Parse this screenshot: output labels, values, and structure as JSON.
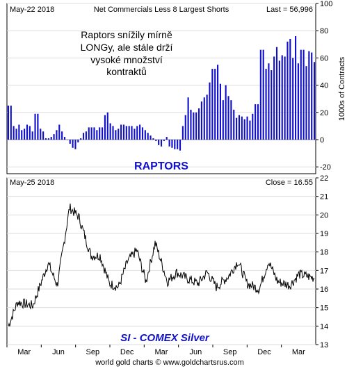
{
  "chart_data": [
    {
      "type": "bar",
      "panel": "top",
      "date_label": "May-22  2018",
      "title": "Net Commercials Less 8 Largest Shorts",
      "last_label": "Last = 56,996",
      "ylabel": "1000s of Contracts",
      "ylim": [
        -25,
        100
      ],
      "yticks": [
        -20,
        0,
        20,
        40,
        60,
        80,
        100
      ],
      "annotation_lines": [
        "Raptors snížily mírně",
        "LONGy, ale stále drží",
        "vysoké množství",
        "kontraktů"
      ],
      "caption": "RAPTORS",
      "colors": {
        "bars": "#1010cc",
        "caption": "#1010cc",
        "annotation": "#000000"
      },
      "values": [
        25,
        25,
        10,
        8,
        11,
        7,
        8,
        11,
        10,
        6,
        19,
        19,
        8,
        6,
        1,
        1,
        2,
        4,
        7,
        11,
        6,
        2,
        0,
        -3,
        -6,
        -7,
        -2,
        1,
        5,
        6,
        9,
        9,
        9,
        7,
        9,
        9,
        18,
        20,
        12,
        10,
        7,
        8,
        11,
        11,
        10,
        10,
        10,
        8,
        10,
        11,
        9,
        7,
        5,
        3,
        1,
        -1,
        -4,
        -5,
        -1,
        2,
        -5,
        -6,
        -7,
        -7,
        -8,
        10,
        18,
        31,
        22,
        20,
        20,
        23,
        28,
        31,
        33,
        42,
        52,
        52,
        55,
        41,
        29,
        40,
        32,
        29,
        22,
        16,
        18,
        17,
        15,
        17,
        14,
        19,
        26,
        26,
        66,
        66,
        52,
        56,
        51,
        61,
        68,
        58,
        62,
        61,
        72,
        74,
        60,
        76,
        56,
        66,
        66,
        54,
        65,
        64,
        57
      ]
    },
    {
      "type": "line",
      "panel": "bottom",
      "date_label": "May-25  2018",
      "close_label": "Close = 16.55",
      "ylim": [
        13,
        22
      ],
      "yticks": [
        13,
        14,
        15,
        16,
        17,
        18,
        19,
        20,
        21,
        22
      ],
      "xticks": [
        "Mar",
        "Jun",
        "Sep",
        "Dec",
        "Mar",
        "Jun",
        "Sep",
        "Dec",
        "Mar"
      ],
      "caption": "SI  -  COMEX Silver",
      "colors": {
        "line": "#000000",
        "caption": "#1010cc"
      },
      "x": [
        0,
        0.03,
        0.08,
        0.13,
        0.16,
        0.2,
        0.23,
        0.27,
        0.3,
        0.33,
        0.36,
        0.39,
        0.42,
        0.45,
        0.48,
        0.52,
        0.55,
        0.58,
        0.62,
        0.65,
        0.68,
        0.72,
        0.75,
        0.78,
        0.82,
        0.85,
        0.88,
        0.92,
        0.95,
        1
      ],
      "values": [
        14.0,
        15.3,
        15.1,
        17.4,
        16.2,
        20.4,
        19.9,
        17.8,
        17.8,
        16.3,
        16.1,
        17.5,
        18.1,
        16.4,
        18.5,
        16.4,
        16.9,
        16.6,
        16.3,
        16.9,
        16.1,
        16.7,
        17.5,
        16.3,
        16.0,
        17.5,
        16.4,
        16.2,
        16.8,
        16.6
      ]
    }
  ],
  "footer": {
    "source": "world gold charts © www.goldchartsrus.com"
  }
}
